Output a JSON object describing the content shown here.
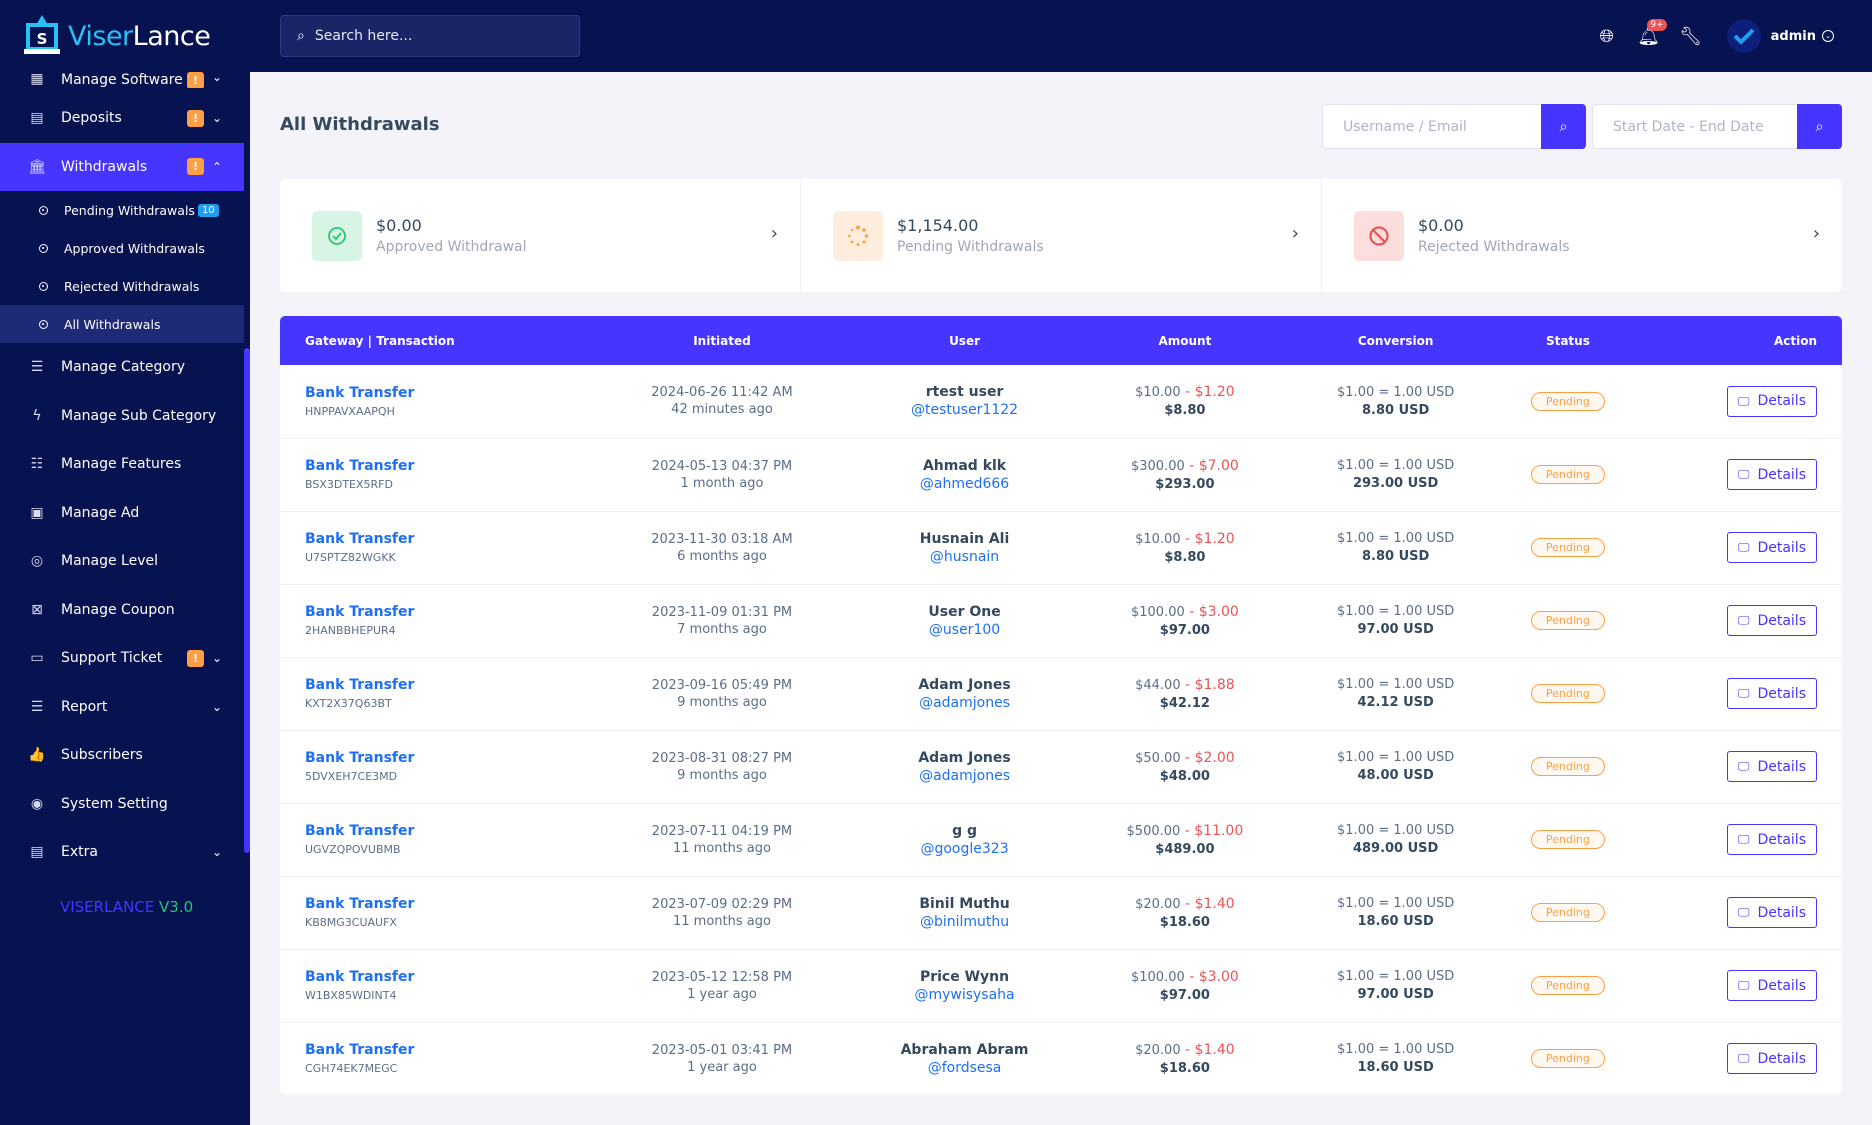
{
  "brand": {
    "part1": "Viser",
    "part2": "Lance"
  },
  "sidebar": {
    "top_cut_item": "Manage Software",
    "items_before": [
      {
        "label": "Deposits",
        "icon": "deposit-icon",
        "warn": "!",
        "chev": "⌄"
      }
    ],
    "active_item": {
      "label": "Withdrawals",
      "warn": "!",
      "chev": "⌃"
    },
    "subitems": [
      {
        "label": "Pending Withdrawals",
        "count": "10"
      },
      {
        "label": "Approved Withdrawals"
      },
      {
        "label": "Rejected Withdrawals"
      },
      {
        "label": "All Withdrawals"
      }
    ],
    "items_after": [
      {
        "label": "Manage Category"
      },
      {
        "label": "Manage Sub Category"
      },
      {
        "label": "Manage Features"
      },
      {
        "label": "Manage Ad"
      },
      {
        "label": "Manage Level"
      },
      {
        "label": "Manage Coupon"
      },
      {
        "label": "Support Ticket",
        "warn": "!"
      },
      {
        "label": "Report"
      },
      {
        "label": "Subscribers"
      },
      {
        "label": "System Setting"
      },
      {
        "label": "Extra"
      }
    ],
    "version_prefix": "VISERLANCE",
    "version": "V3.0"
  },
  "topbar": {
    "search_placeholder": "Search here...",
    "notif_count": "9+",
    "admin_name": "admin"
  },
  "page": {
    "title": "All Withdrawals",
    "user_filter_placeholder": "Username / Email",
    "date_filter_placeholder": "Start Date - End Date"
  },
  "stats": [
    {
      "amount": "$0.00",
      "label": "Approved Withdrawal"
    },
    {
      "amount": "$1,154.00",
      "label": "Pending Withdrawals"
    },
    {
      "amount": "$0.00",
      "label": "Rejected Withdrawals"
    }
  ],
  "table": {
    "headers": [
      "Gateway | Transaction",
      "Initiated",
      "User",
      "Amount",
      "Conversion",
      "Status",
      "Action"
    ],
    "rows": [
      {
        "gateway": "Bank Transfer",
        "trx": "HNPPAVXAAPQH",
        "date": "2024-06-26 11:42 AM",
        "ago": "42 minutes ago",
        "name": "rtest user",
        "handle": "@testuser1122",
        "amount": "$10.00",
        "charge": "$1.20",
        "net": "$8.80",
        "rate": "$1.00 = 1.00 USD",
        "conv": "8.80 USD",
        "status": "Pending",
        "action": "Details"
      },
      {
        "gateway": "Bank Transfer",
        "trx": "BSX3DTEX5RFD",
        "date": "2024-05-13 04:37 PM",
        "ago": "1 month ago",
        "name": "Ahmad klk",
        "handle": "@ahmed666",
        "amount": "$300.00",
        "charge": "$7.00",
        "net": "$293.00",
        "rate": "$1.00 = 1.00 USD",
        "conv": "293.00 USD",
        "status": "Pending",
        "action": "Details"
      },
      {
        "gateway": "Bank Transfer",
        "trx": "U7SPTZ82WGKK",
        "date": "2023-11-30 03:18 AM",
        "ago": "6 months ago",
        "name": "Husnain Ali",
        "handle": "@husnain",
        "amount": "$10.00",
        "charge": "$1.20",
        "net": "$8.80",
        "rate": "$1.00 = 1.00 USD",
        "conv": "8.80 USD",
        "status": "Pending",
        "action": "Details"
      },
      {
        "gateway": "Bank Transfer",
        "trx": "2HANBBHEPUR4",
        "date": "2023-11-09 01:31 PM",
        "ago": "7 months ago",
        "name": "User One",
        "handle": "@user100",
        "amount": "$100.00",
        "charge": "$3.00",
        "net": "$97.00",
        "rate": "$1.00 = 1.00 USD",
        "conv": "97.00 USD",
        "status": "Pending",
        "action": "Details"
      },
      {
        "gateway": "Bank Transfer",
        "trx": "KXT2X37Q63BT",
        "date": "2023-09-16 05:49 PM",
        "ago": "9 months ago",
        "name": "Adam Jones",
        "handle": "@adamjones",
        "amount": "$44.00",
        "charge": "$1.88",
        "net": "$42.12",
        "rate": "$1.00 = 1.00 USD",
        "conv": "42.12 USD",
        "status": "Pending",
        "action": "Details"
      },
      {
        "gateway": "Bank Transfer",
        "trx": "5DVXEH7CE3MD",
        "date": "2023-08-31 08:27 PM",
        "ago": "9 months ago",
        "name": "Adam Jones",
        "handle": "@adamjones",
        "amount": "$50.00",
        "charge": "$2.00",
        "net": "$48.00",
        "rate": "$1.00 = 1.00 USD",
        "conv": "48.00 USD",
        "status": "Pending",
        "action": "Details"
      },
      {
        "gateway": "Bank Transfer",
        "trx": "UGVZQPOVUBMB",
        "date": "2023-07-11 04:19 PM",
        "ago": "11 months ago",
        "name": "g g",
        "handle": "@google323",
        "amount": "$500.00",
        "charge": "$11.00",
        "net": "$489.00",
        "rate": "$1.00 = 1.00 USD",
        "conv": "489.00 USD",
        "status": "Pending",
        "action": "Details"
      },
      {
        "gateway": "Bank Transfer",
        "trx": "KB8MG3CUAUFX",
        "date": "2023-07-09 02:29 PM",
        "ago": "11 months ago",
        "name": "Binil Muthu",
        "handle": "@binilmuthu",
        "amount": "$20.00",
        "charge": "$1.40",
        "net": "$18.60",
        "rate": "$1.00 = 1.00 USD",
        "conv": "18.60 USD",
        "status": "Pending",
        "action": "Details"
      },
      {
        "gateway": "Bank Transfer",
        "trx": "W1BX85WDINT4",
        "date": "2023-05-12 12:58 PM",
        "ago": "1 year ago",
        "name": "Price Wynn",
        "handle": "@mywisysaha",
        "amount": "$100.00",
        "charge": "$3.00",
        "net": "$97.00",
        "rate": "$1.00 = 1.00 USD",
        "conv": "97.00 USD",
        "status": "Pending",
        "action": "Details"
      },
      {
        "gateway": "Bank Transfer",
        "trx": "CGH74EK7MEGC",
        "date": "2023-05-01 03:41 PM",
        "ago": "1 year ago",
        "name": "Abraham Abram",
        "handle": "@fordsesa",
        "amount": "$20.00",
        "charge": "$1.40",
        "net": "$18.60",
        "rate": "$1.00 = 1.00 USD",
        "conv": "18.60 USD",
        "status": "Pending",
        "action": "Details"
      }
    ]
  }
}
